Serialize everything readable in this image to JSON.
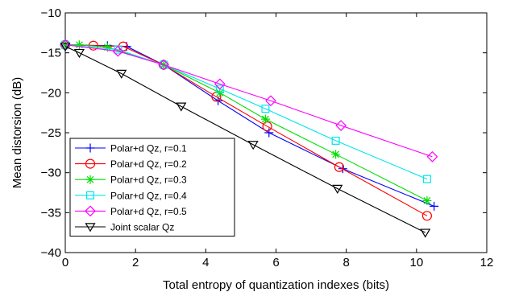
{
  "chart_data": {
    "type": "line",
    "xlabel": "Total entropy of quantization indexes (bits)",
    "ylabel": "Mean distorsion (dB)",
    "xlim": [
      0,
      12
    ],
    "ylim": [
      -40,
      -10
    ],
    "xticks": [
      0,
      2,
      4,
      6,
      8,
      10,
      12
    ],
    "yticks": [
      -10,
      -15,
      -20,
      -25,
      -30,
      -35,
      -40
    ],
    "xtick_labels": [
      "0",
      "2",
      "4",
      "6",
      "8",
      "10",
      "12"
    ],
    "ytick_labels": [
      "−10",
      "−15",
      "−20",
      "−25",
      "−30",
      "−35",
      "−40"
    ],
    "grid": false,
    "legend_position": "bottom-left",
    "series": [
      {
        "name": "Polar+d Qz, r=0.1",
        "color": "#0000ff",
        "marker": "plus",
        "x": [
          0.0,
          1.2,
          1.75,
          2.8,
          4.35,
          5.8,
          7.9,
          10.5
        ],
        "y": [
          -14.0,
          -14.1,
          -14.2,
          -16.5,
          -21.0,
          -25.0,
          -29.5,
          -34.2
        ]
      },
      {
        "name": "Polar+d Qz, r=0.2",
        "color": "#ff0000",
        "marker": "circle",
        "x": [
          0.0,
          0.8,
          1.65,
          2.8,
          4.3,
          5.75,
          7.8,
          10.3
        ],
        "y": [
          -14.0,
          -14.1,
          -14.2,
          -16.5,
          -20.5,
          -24.2,
          -29.3,
          -35.4
        ]
      },
      {
        "name": "Polar+d Qz, r=0.3",
        "color": "#00dd00",
        "marker": "star",
        "x": [
          0.0,
          0.4,
          1.2,
          2.8,
          4.4,
          5.7,
          7.7,
          10.3
        ],
        "y": [
          -14.0,
          -14.0,
          -14.3,
          -16.5,
          -20.0,
          -23.3,
          -27.7,
          -33.5
        ]
      },
      {
        "name": "Polar+d Qz, r=0.4",
        "color": "#00e5ee",
        "marker": "square",
        "x": [
          0.0,
          1.5,
          2.8,
          4.4,
          5.7,
          7.7,
          10.3
        ],
        "y": [
          -14.0,
          -14.6,
          -16.5,
          -19.5,
          -22.0,
          -26.0,
          -30.8
        ]
      },
      {
        "name": "Polar+d Qz, r=0.5",
        "color": "#ff00ff",
        "marker": "diamond",
        "x": [
          0.0,
          1.5,
          2.8,
          4.4,
          5.85,
          7.85,
          10.45
        ],
        "y": [
          -14.0,
          -14.8,
          -16.5,
          -18.9,
          -21.0,
          -24.1,
          -28.0
        ]
      },
      {
        "name": "Joint scalar Qz",
        "color": "#000000",
        "marker": "triangle-down",
        "x": [
          0.0,
          0.4,
          1.6,
          3.3,
          5.35,
          7.75,
          10.25
        ],
        "y": [
          -14.2,
          -15.0,
          -17.6,
          -21.7,
          -26.5,
          -32.0,
          -37.5
        ]
      }
    ]
  }
}
